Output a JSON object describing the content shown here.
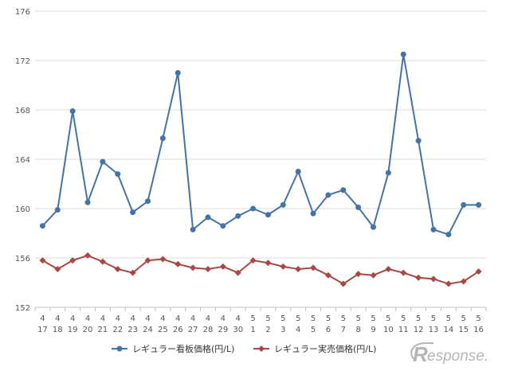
{
  "chart_data": {
    "type": "line",
    "title": "",
    "xlabel": "",
    "ylabel": "",
    "ylim": [
      152,
      176
    ],
    "y_ticks": [
      152,
      156,
      160,
      164,
      168,
      172,
      176
    ],
    "grid": "horizontal",
    "legend_position": "bottom",
    "categories": [
      {
        "month": "4",
        "day": "17"
      },
      {
        "month": "4",
        "day": "18"
      },
      {
        "month": "4",
        "day": "19"
      },
      {
        "month": "4",
        "day": "20"
      },
      {
        "month": "4",
        "day": "21"
      },
      {
        "month": "4",
        "day": "22"
      },
      {
        "month": "4",
        "day": "23"
      },
      {
        "month": "4",
        "day": "24"
      },
      {
        "month": "4",
        "day": "25"
      },
      {
        "month": "4",
        "day": "26"
      },
      {
        "month": "4",
        "day": "27"
      },
      {
        "month": "4",
        "day": "28"
      },
      {
        "month": "4",
        "day": "29"
      },
      {
        "month": "4",
        "day": "30"
      },
      {
        "month": "5",
        "day": "1"
      },
      {
        "month": "5",
        "day": "2"
      },
      {
        "month": "5",
        "day": "3"
      },
      {
        "month": "5",
        "day": "4"
      },
      {
        "month": "5",
        "day": "5"
      },
      {
        "month": "5",
        "day": "6"
      },
      {
        "month": "5",
        "day": "7"
      },
      {
        "month": "5",
        "day": "8"
      },
      {
        "month": "5",
        "day": "9"
      },
      {
        "month": "5",
        "day": "10"
      },
      {
        "month": "5",
        "day": "11"
      },
      {
        "month": "5",
        "day": "12"
      },
      {
        "month": "5",
        "day": "13"
      },
      {
        "month": "5",
        "day": "14"
      },
      {
        "month": "5",
        "day": "15"
      },
      {
        "month": "5",
        "day": "16"
      }
    ],
    "series": [
      {
        "name": "レギュラー看板価格(円/L)",
        "color": "#4572a7",
        "marker": "circle",
        "values": [
          158.6,
          159.9,
          167.9,
          160.5,
          163.8,
          162.8,
          159.7,
          160.6,
          165.7,
          171.0,
          158.3,
          159.3,
          158.6,
          159.4,
          160.0,
          159.5,
          160.3,
          163.0,
          159.6,
          161.1,
          161.5,
          160.1,
          158.5,
          162.9,
          172.5,
          165.5,
          158.3,
          157.9,
          160.3,
          160.3
        ]
      },
      {
        "name": "レギュラー実売価格(円/L)",
        "color": "#aa4643",
        "marker": "diamond",
        "values": [
          155.8,
          155.1,
          155.8,
          156.2,
          155.7,
          155.1,
          154.8,
          155.8,
          155.9,
          155.5,
          155.2,
          155.1,
          155.3,
          154.8,
          155.8,
          155.6,
          155.3,
          155.1,
          155.2,
          154.6,
          153.9,
          154.7,
          154.6,
          155.1,
          154.8,
          154.4,
          154.3,
          153.9,
          154.1,
          154.9
        ]
      }
    ]
  },
  "watermark": {
    "text": "esponse.",
    "prefix": "R",
    "color": "#b5b5b5"
  }
}
